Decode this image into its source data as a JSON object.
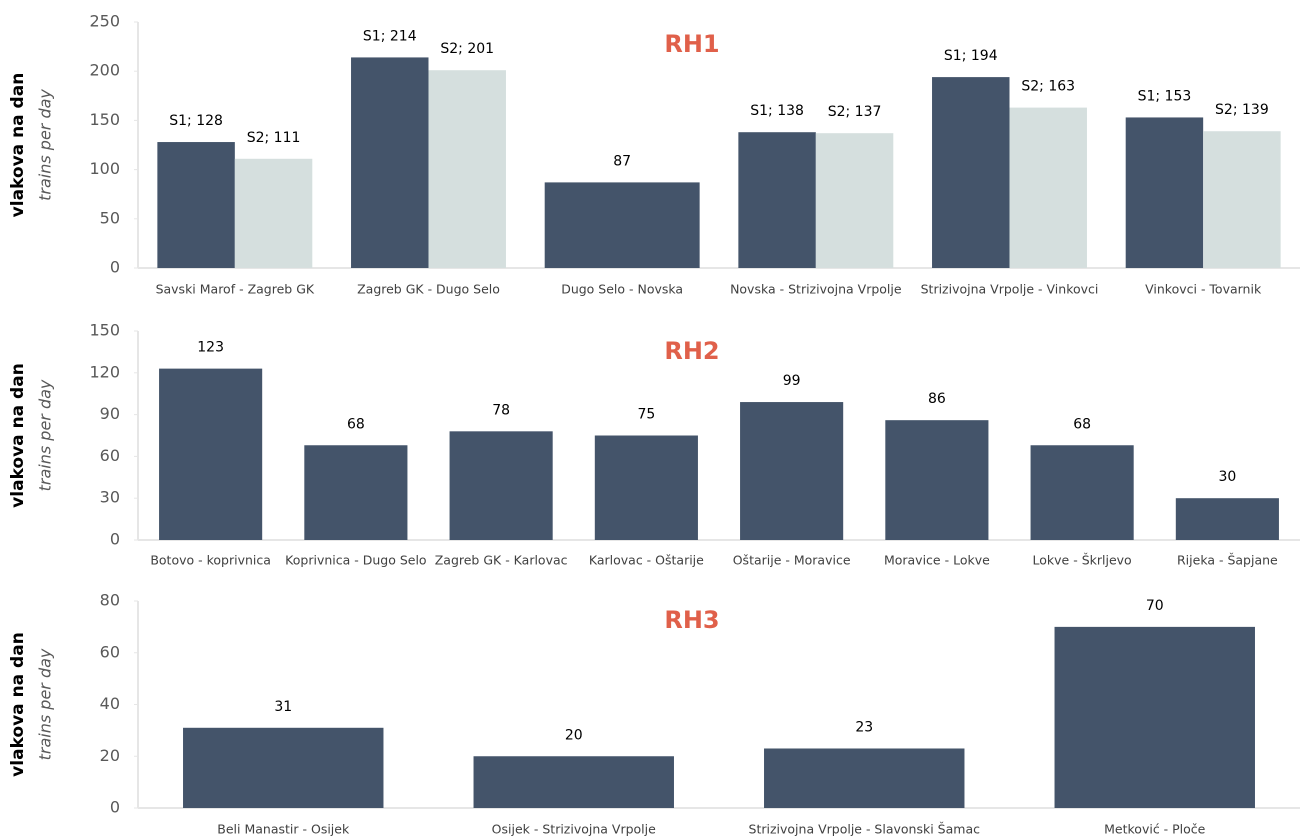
{
  "chart_data": [
    {
      "type": "bar",
      "title": "RH1",
      "ylabel": "vlakova na dan",
      "ylabel_sub": "trains per day",
      "categories": [
        "Savski Marof - Zagreb GK",
        "Zagreb GK - Dugo Selo",
        "Dugo Selo - Novska",
        "Novska - Strizivojna Vrpolje",
        "Strizivojna Vrpolje - Vinkovci",
        "Vinkovci - Tovarnik"
      ],
      "series": [
        {
          "color": "#44546a",
          "values": [
            128,
            214,
            87,
            138,
            194,
            153
          ],
          "value_labels": [
            "S1; 128",
            "S1; 214",
            "87",
            "S1; 138",
            "S1; 194",
            "S1; 153"
          ]
        },
        {
          "color": "#d5dfde",
          "values": [
            111,
            201,
            null,
            137,
            163,
            139
          ],
          "value_labels": [
            "S2; 111",
            "S2; 201",
            null,
            "S2; 137",
            "S2; 163",
            "S2; 139"
          ]
        }
      ],
      "ylim": [
        0,
        250
      ],
      "yticks": [
        0,
        50,
        100,
        150,
        200,
        250
      ]
    },
    {
      "type": "bar",
      "title": "RH2",
      "ylabel": "vlakova na dan",
      "ylabel_sub": "trains per day",
      "categories": [
        "Botovo - koprivnica",
        "Koprivnica - Dugo Selo",
        "Zagreb GK - Karlovac",
        "Karlovac - Oštarije",
        "Oštarije - Moravice",
        "Moravice - Lokve",
        "Lokve - Škrljevo",
        "Rijeka - Šapjane"
      ],
      "values": [
        123,
        68,
        78,
        75,
        99,
        86,
        68,
        30
      ],
      "color": "#44546a",
      "ylim": [
        0,
        150
      ],
      "yticks": [
        0,
        30,
        60,
        90,
        120,
        150
      ]
    },
    {
      "type": "bar",
      "title": "RH3",
      "ylabel": "vlakova na dan",
      "ylabel_sub": "trains per day",
      "categories": [
        "Beli Manastir - Osijek",
        "Osijek - Strizivojna Vrpolje",
        "Strizivojna Vrpolje - Slavonski Šamac",
        "Metković - Ploče"
      ],
      "values": [
        31,
        20,
        23,
        70
      ],
      "color": "#44546a",
      "ylim": [
        0,
        80
      ],
      "yticks": [
        0,
        20,
        40,
        60,
        80
      ]
    }
  ]
}
